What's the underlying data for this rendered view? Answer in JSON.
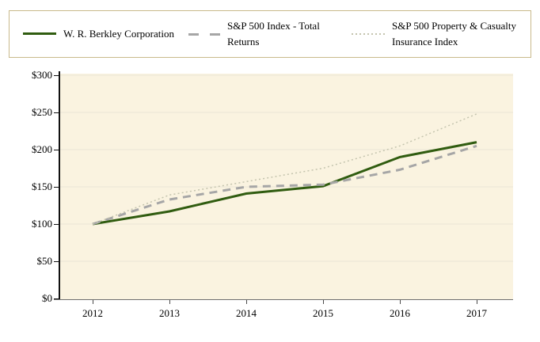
{
  "page": {
    "background": "#ffffff"
  },
  "legend": {
    "border_color": "#c9ba8b",
    "items": [
      {
        "label": "W. R. Berkley Corporation",
        "line_style": "solid",
        "color": "#305c10"
      },
      {
        "label": "S&P 500 Index - Total Returns",
        "line_style": "dashed",
        "color": "#a6a6a6"
      },
      {
        "label_lines": [
          "S&P 500 Property & Casualty",
          "Insurance Index"
        ],
        "label": "S&P 500 Property & Casualty Insurance Index",
        "line_style": "dotted",
        "color": "#c4c4ae"
      }
    ]
  },
  "chart_data": {
    "type": "line",
    "x": [
      "2012",
      "2013",
      "2014",
      "2015",
      "2016",
      "2017"
    ],
    "series": [
      {
        "name": "W. R. Berkley Corporation",
        "style": "solid",
        "color": "#305c10",
        "values": [
          100,
          117,
          141,
          151,
          190,
          210
        ]
      },
      {
        "name": "S&P 500 Index - Total Returns",
        "style": "dashed",
        "color": "#a6a6a6",
        "values": [
          100,
          133,
          150,
          153,
          173,
          205
        ]
      },
      {
        "name": "S&P 500 Property & Casualty Insurance Index",
        "style": "dotted",
        "color": "#c4c4ae",
        "values": [
          100,
          139,
          157,
          175,
          205,
          248
        ]
      }
    ],
    "ylim": [
      0,
      300
    ],
    "ytick_step": 50,
    "ytick_labels": [
      "$300",
      "$250",
      "$200",
      "$150",
      "$100",
      "$50",
      "$0"
    ],
    "grid": true,
    "legend_position": "top",
    "plot_background": "#faf3e0",
    "gridline_color": "#e9e5d6",
    "axis_color": "#111111"
  }
}
